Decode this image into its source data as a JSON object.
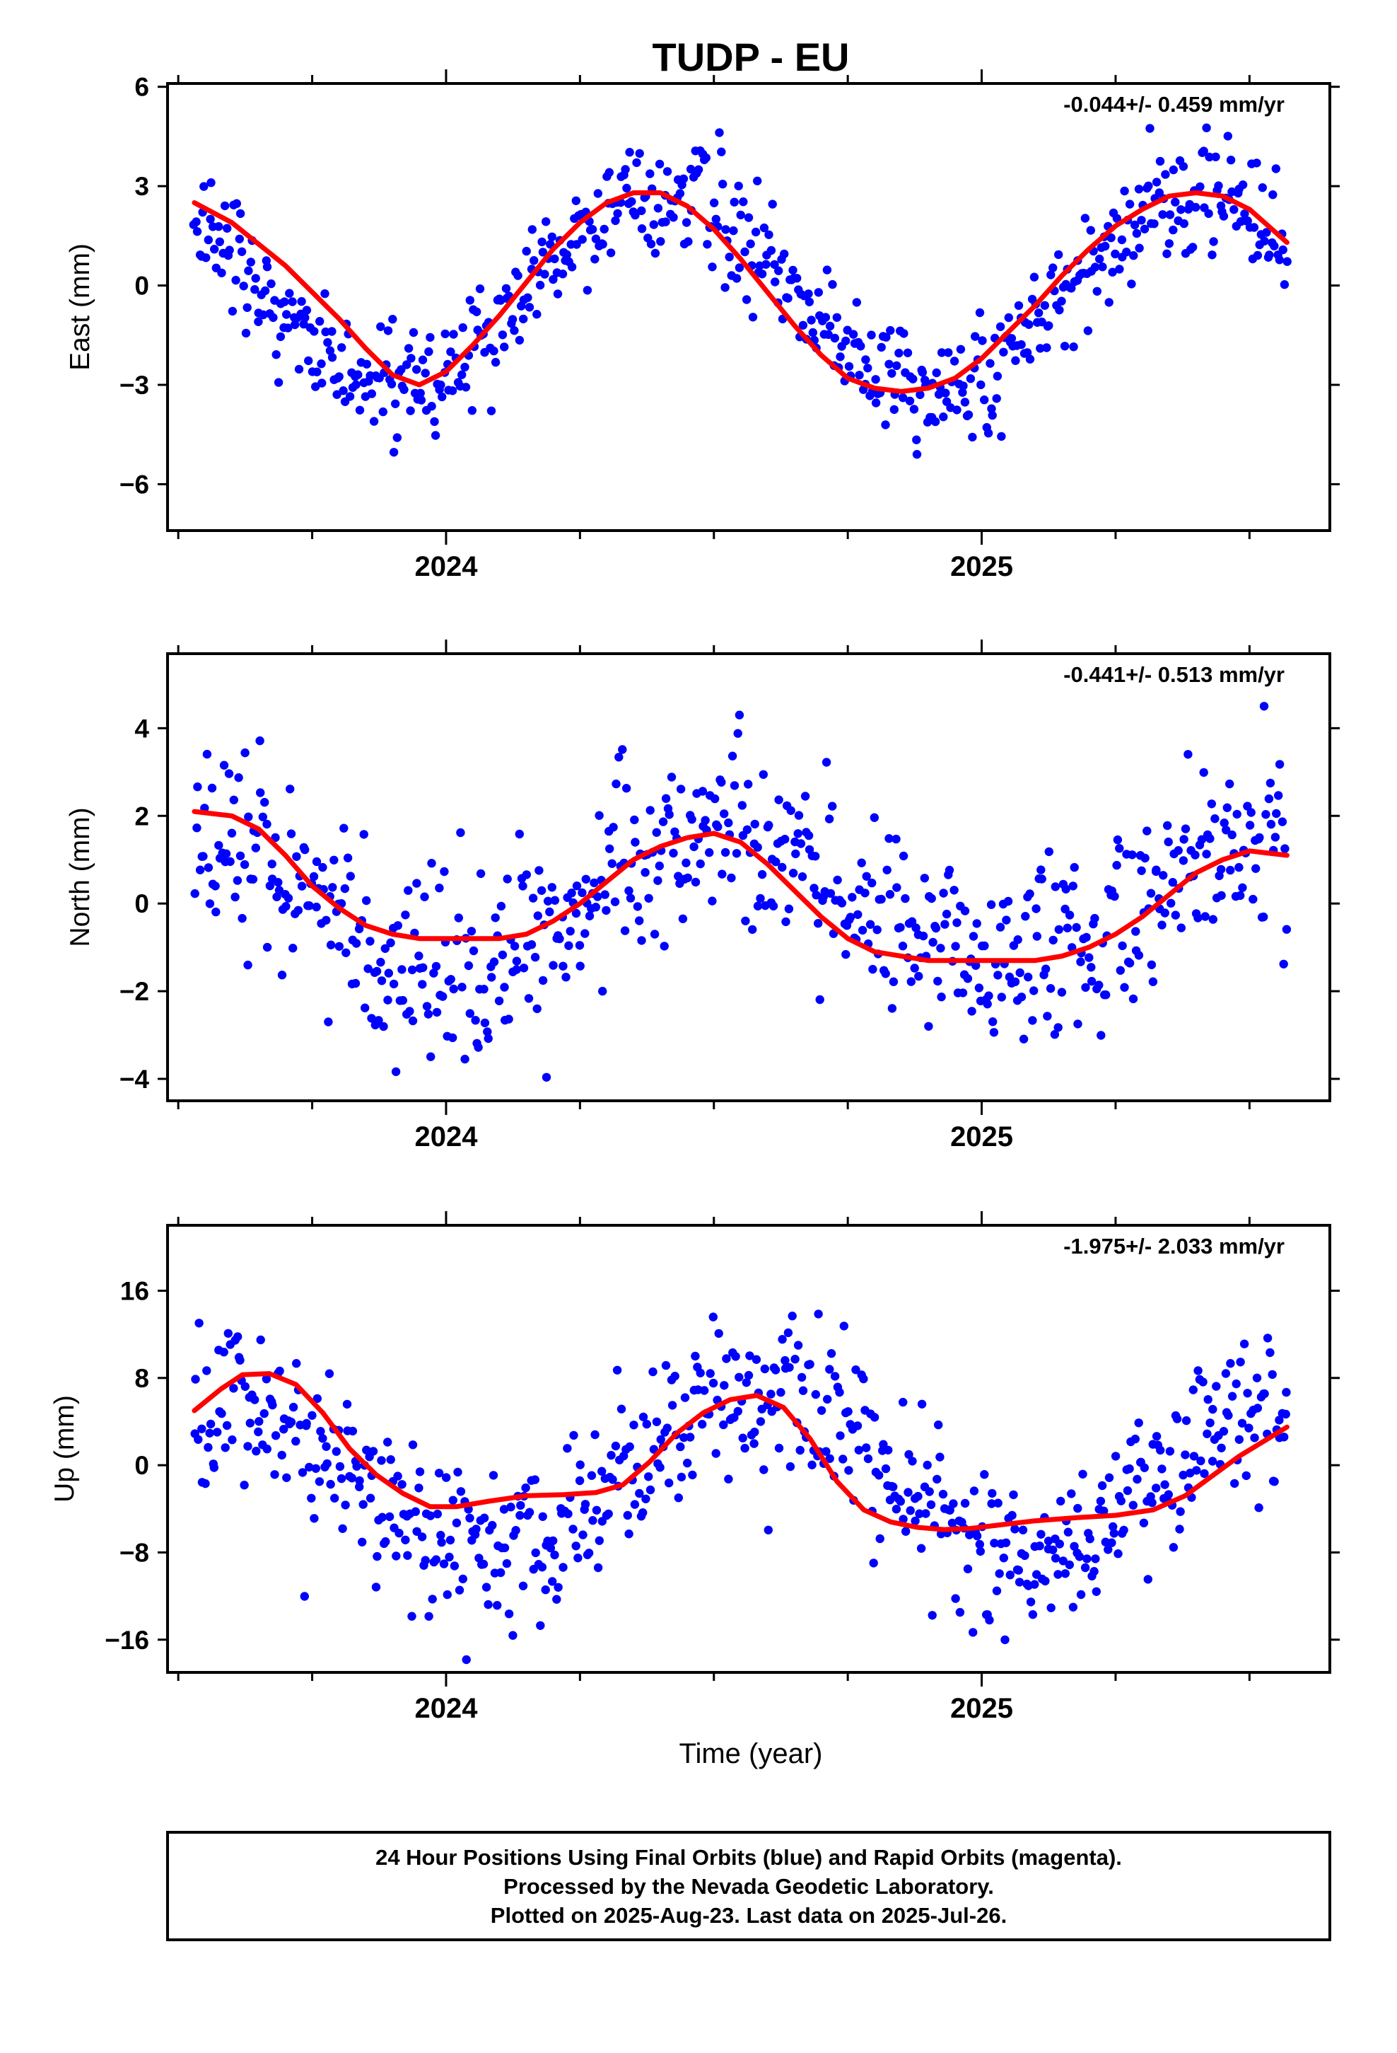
{
  "chart_data": {
    "type": "scatter",
    "title": "TUDP - EU",
    "xlabel": "Time (year)",
    "xlim": [
      2023.48,
      2025.65
    ],
    "x_major_ticks": [
      2024,
      2025
    ],
    "x_major_tick_labels": [
      "2024",
      "2025"
    ],
    "x_minor_ticks": [
      2023.5,
      2023.75,
      2024.25,
      2024.5,
      2024.75,
      2025.25,
      2025.5
    ],
    "legend": "none",
    "grid": false,
    "colors": {
      "points": "#0000ff",
      "fit": "#ff0000",
      "frame": "#000000"
    },
    "data_range": [
      2023.53,
      2025.57
    ],
    "panels": [
      {
        "name": "east",
        "ylabel": "East (mm)",
        "ylim": [
          -7.4,
          6.1
        ],
        "yticks": [
          6,
          3,
          0,
          -3,
          -6
        ],
        "ytick_labels": [
          "6",
          "3",
          "0",
          "−3",
          "−6"
        ],
        "rate": "-0.044+/- 0.459 mm/yr",
        "fit": [
          [
            2023.53,
            2.5
          ],
          [
            2023.6,
            1.9
          ],
          [
            2023.7,
            0.6
          ],
          [
            2023.8,
            -1.0
          ],
          [
            2023.85,
            -1.9
          ],
          [
            2023.9,
            -2.7
          ],
          [
            2023.95,
            -3.0
          ],
          [
            2024.0,
            -2.6
          ],
          [
            2024.05,
            -1.8
          ],
          [
            2024.1,
            -0.9
          ],
          [
            2024.15,
            0.1
          ],
          [
            2024.2,
            1.1
          ],
          [
            2024.25,
            1.9
          ],
          [
            2024.3,
            2.5
          ],
          [
            2024.35,
            2.8
          ],
          [
            2024.4,
            2.8
          ],
          [
            2024.45,
            2.4
          ],
          [
            2024.5,
            1.7
          ],
          [
            2024.55,
            0.8
          ],
          [
            2024.6,
            -0.2
          ],
          [
            2024.65,
            -1.2
          ],
          [
            2024.7,
            -2.1
          ],
          [
            2024.75,
            -2.8
          ],
          [
            2024.8,
            -3.1
          ],
          [
            2024.85,
            -3.2
          ],
          [
            2024.9,
            -3.1
          ],
          [
            2024.95,
            -2.8
          ],
          [
            2025.0,
            -2.2
          ],
          [
            2025.05,
            -1.4
          ],
          [
            2025.1,
            -0.6
          ],
          [
            2025.15,
            0.3
          ],
          [
            2025.2,
            1.1
          ],
          [
            2025.25,
            1.8
          ],
          [
            2025.3,
            2.3
          ],
          [
            2025.35,
            2.7
          ],
          [
            2025.4,
            2.8
          ],
          [
            2025.45,
            2.7
          ],
          [
            2025.5,
            2.3
          ],
          [
            2025.57,
            1.3
          ]
        ],
        "scatter_model": {
          "amp": 3.0,
          "phase_peak": 2024.41,
          "offset": -0.2,
          "noise_sd": 0.9
        }
      },
      {
        "name": "north",
        "ylabel": "North (mm)",
        "ylim": [
          -4.5,
          5.7
        ],
        "yticks": [
          4,
          2,
          0,
          -2,
          -4
        ],
        "ytick_labels": [
          "4",
          "2",
          "0",
          "−2",
          "−4"
        ],
        "rate": "-0.441+/- 0.513 mm/yr",
        "fit": [
          [
            2023.53,
            2.1
          ],
          [
            2023.6,
            2.0
          ],
          [
            2023.65,
            1.7
          ],
          [
            2023.7,
            1.1
          ],
          [
            2023.75,
            0.4
          ],
          [
            2023.8,
            -0.1
          ],
          [
            2023.85,
            -0.5
          ],
          [
            2023.9,
            -0.7
          ],
          [
            2023.95,
            -0.8
          ],
          [
            2024.0,
            -0.8
          ],
          [
            2024.05,
            -0.8
          ],
          [
            2024.1,
            -0.8
          ],
          [
            2024.15,
            -0.7
          ],
          [
            2024.2,
            -0.4
          ],
          [
            2024.25,
            0.0
          ],
          [
            2024.3,
            0.5
          ],
          [
            2024.35,
            1.0
          ],
          [
            2024.4,
            1.3
          ],
          [
            2024.45,
            1.5
          ],
          [
            2024.5,
            1.6
          ],
          [
            2024.55,
            1.4
          ],
          [
            2024.6,
            0.9
          ],
          [
            2024.65,
            0.3
          ],
          [
            2024.7,
            -0.3
          ],
          [
            2024.75,
            -0.8
          ],
          [
            2024.8,
            -1.1
          ],
          [
            2024.85,
            -1.2
          ],
          [
            2024.9,
            -1.3
          ],
          [
            2024.95,
            -1.3
          ],
          [
            2025.0,
            -1.3
          ],
          [
            2025.05,
            -1.3
          ],
          [
            2025.1,
            -1.3
          ],
          [
            2025.15,
            -1.2
          ],
          [
            2025.2,
            -1.0
          ],
          [
            2025.25,
            -0.7
          ],
          [
            2025.3,
            -0.3
          ],
          [
            2025.35,
            0.2
          ],
          [
            2025.4,
            0.7
          ],
          [
            2025.45,
            1.0
          ],
          [
            2025.5,
            1.2
          ],
          [
            2025.57,
            1.1
          ]
        ],
        "scatter_model": {
          "amp": 1.4,
          "phase_peak": 2024.52,
          "offset": 0.0,
          "noise_sd": 1.1
        }
      },
      {
        "name": "up",
        "ylabel": "Up (mm)",
        "ylim": [
          -19,
          22
        ],
        "yticks": [
          16,
          8,
          0,
          -8,
          -16
        ],
        "ytick_labels": [
          "16",
          "8",
          "0",
          "−8",
          "−16"
        ],
        "rate": "-1.975+/- 2.033 mm/yr",
        "fit": [
          [
            2023.53,
            5.0
          ],
          [
            2023.58,
            7.0
          ],
          [
            2023.62,
            8.3
          ],
          [
            2023.67,
            8.4
          ],
          [
            2023.72,
            7.4
          ],
          [
            2023.77,
            4.8
          ],
          [
            2023.82,
            1.5
          ],
          [
            2023.87,
            -0.9
          ],
          [
            2023.92,
            -2.6
          ],
          [
            2023.97,
            -3.8
          ],
          [
            2024.02,
            -3.8
          ],
          [
            2024.08,
            -3.3
          ],
          [
            2024.15,
            -2.8
          ],
          [
            2024.22,
            -2.7
          ],
          [
            2024.28,
            -2.5
          ],
          [
            2024.33,
            -1.8
          ],
          [
            2024.38,
            0.3
          ],
          [
            2024.43,
            2.9
          ],
          [
            2024.48,
            4.8
          ],
          [
            2024.53,
            6.0
          ],
          [
            2024.58,
            6.4
          ],
          [
            2024.63,
            5.3
          ],
          [
            2024.68,
            2.4
          ],
          [
            2024.73,
            -1.5
          ],
          [
            2024.78,
            -4.1
          ],
          [
            2024.83,
            -5.2
          ],
          [
            2024.88,
            -5.7
          ],
          [
            2024.93,
            -5.9
          ],
          [
            2024.98,
            -5.8
          ],
          [
            2025.03,
            -5.5
          ],
          [
            2025.1,
            -5.1
          ],
          [
            2025.18,
            -4.8
          ],
          [
            2025.25,
            -4.6
          ],
          [
            2025.32,
            -4.1
          ],
          [
            2025.38,
            -2.8
          ],
          [
            2025.43,
            -1.0
          ],
          [
            2025.48,
            0.8
          ],
          [
            2025.53,
            2.3
          ],
          [
            2025.57,
            3.5
          ]
        ],
        "scatter_model": {
          "amp": 7.0,
          "phase_peak": 2024.58,
          "offset": -1.0,
          "noise_sd": 3.8
        }
      }
    ]
  },
  "footer": {
    "line1": "24 Hour Positions Using Final Orbits (blue) and Rapid Orbits (magenta).",
    "line2": "Processed by the Nevada Geodetic Laboratory.",
    "line3": "Plotted on 2025-Aug-23. Last data on 2025-Jul-26."
  }
}
